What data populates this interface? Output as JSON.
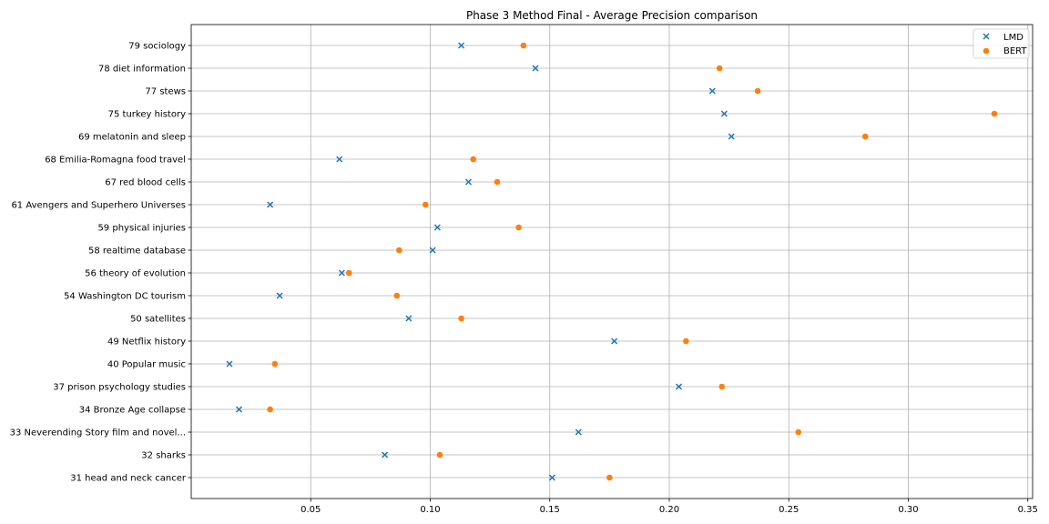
{
  "chart_data": {
    "type": "scatter",
    "title": "Phase 3 Method Final - Average Precision comparison",
    "xlabel": "",
    "ylabel": "",
    "xlim": [
      0.0,
      0.352
    ],
    "xticks": [
      "0.05",
      "0.10",
      "0.15",
      "0.20",
      "0.25",
      "0.30",
      "0.35"
    ],
    "grid": true,
    "legend_position": "top-right",
    "categories": [
      "79 sociology",
      "78 diet information",
      "77 stews",
      "75 turkey history",
      "69 melatonin and sleep",
      "68 Emilia-Romagna food travel",
      "67 red blood cells",
      "61 Avengers and Superhero Universes",
      "59 physical injuries",
      "58 realtime database",
      "56 theory of evolution",
      "54 Washington DC tourism",
      "50 satellites",
      "49 Netflix history",
      "40 Popular music",
      "37 prison psychology studies",
      "34 Bronze Age collapse",
      "33 Neverending Story film and novel...",
      "32 sharks",
      "31 head and neck cancer"
    ],
    "series": [
      {
        "name": "LMD",
        "marker": "x",
        "color": "#1f77b4",
        "values": [
          0.113,
          0.144,
          0.218,
          0.223,
          0.226,
          0.062,
          0.116,
          0.033,
          0.103,
          0.101,
          0.063,
          0.037,
          0.091,
          0.177,
          0.016,
          0.204,
          0.02,
          0.162,
          0.081,
          0.151
        ]
      },
      {
        "name": "BERT",
        "marker": "o",
        "color": "#ff7f0e",
        "values": [
          0.139,
          0.221,
          0.237,
          0.336,
          0.282,
          0.118,
          0.128,
          0.098,
          0.137,
          0.087,
          0.066,
          0.086,
          0.113,
          0.207,
          0.035,
          0.222,
          0.033,
          0.254,
          0.104,
          0.175
        ]
      }
    ]
  }
}
